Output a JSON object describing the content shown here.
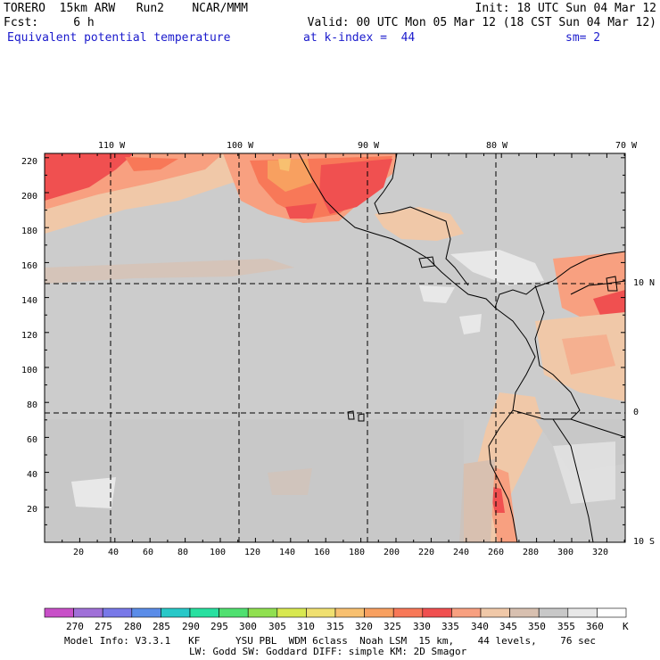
{
  "header": {
    "line1_left": "TORERO  15km ARW   Run2    NCAR/MMM",
    "line1_right": "Init: 18 UTC Sun 04 Mar 12",
    "line2_left": "Fcst:     6 h",
    "line2_right": "Valid: 00 UTC Mon 05 Mar 12 (18 CST Sun 04 Mar 12)",
    "field": "Equivalent potential temperature",
    "level": "at k-index =  44",
    "smooth": "sm= 2"
  },
  "axes": {
    "top_lon": [
      "110 W",
      "100 W",
      "90 W",
      "80 W",
      "70 W"
    ],
    "left_y": [
      "220",
      "200",
      "180",
      "160",
      "140",
      "120",
      "100",
      "80",
      "60",
      "40",
      "20"
    ],
    "bottom_x": [
      "20",
      "40",
      "60",
      "80",
      "100",
      "120",
      "140",
      "160",
      "180",
      "200",
      "220",
      "240",
      "260",
      "280",
      "300",
      "320"
    ],
    "right_lat": [
      "10 N",
      "0",
      "10 S"
    ]
  },
  "colorbar": {
    "unit": "K",
    "labels": [
      "270",
      "275",
      "280",
      "285",
      "290",
      "295",
      "300",
      "305",
      "310",
      "315",
      "320",
      "325",
      "330",
      "335",
      "340",
      "345",
      "350",
      "355",
      "360"
    ],
    "colors": [
      "#c850c8",
      "#a070d8",
      "#7878e8",
      "#5a8ce8",
      "#28c8c8",
      "#28e0a0",
      "#50e070",
      "#90e050",
      "#d8e850",
      "#f0e070",
      "#f8c070",
      "#f8a060",
      "#f87858",
      "#f05050",
      "#f8a080",
      "#f0c8a8",
      "#d8c0b0",
      "#c8c8c8",
      "#e8e8e8",
      "#ffffff"
    ]
  },
  "footer": {
    "line1": "Model Info: V3.3.1   KF      YSU PBL  WDM 6class  Noah LSM  15 km,    44 levels,    76 sec",
    "line2": "LW: Godd SW: Goddard DIFF: simple KM: 2D Smagor"
  }
}
